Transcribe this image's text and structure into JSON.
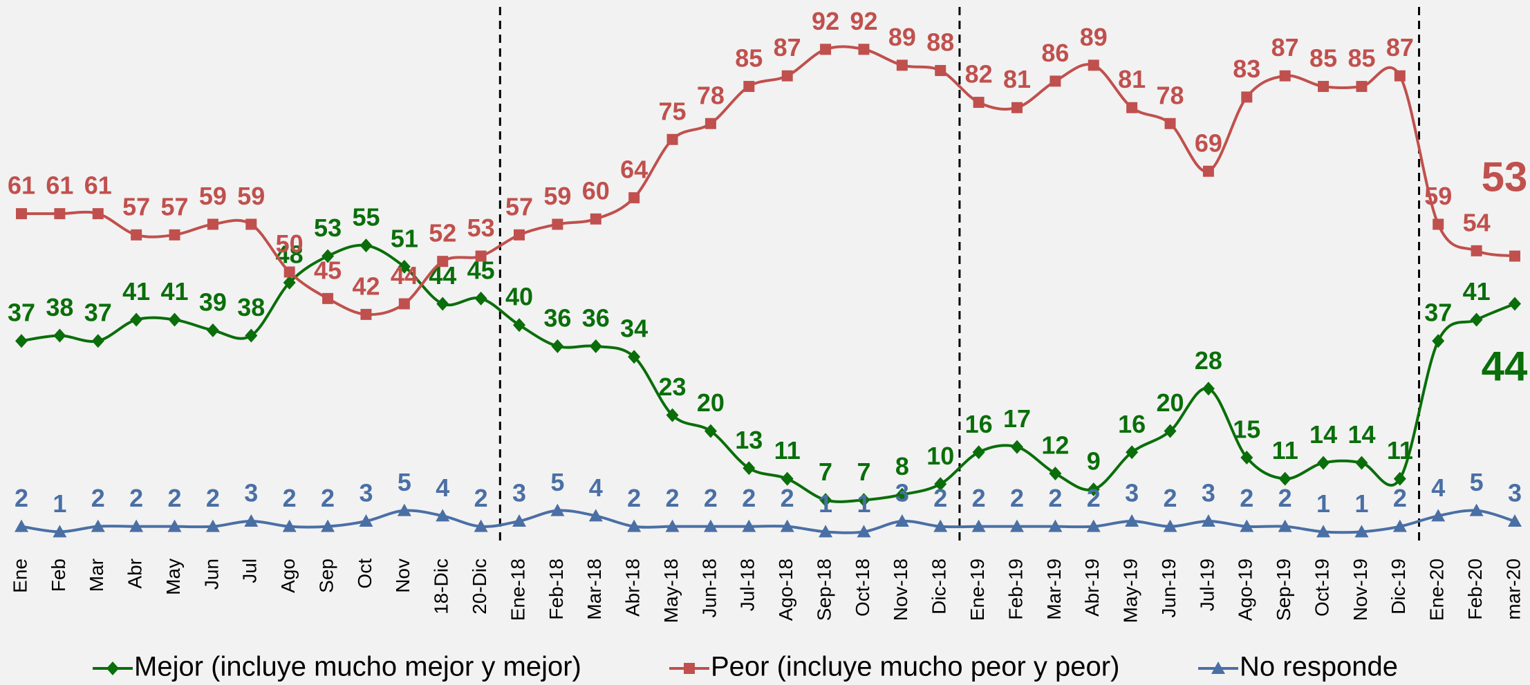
{
  "chart_data": {
    "type": "line",
    "categories": [
      "Ene",
      "Feb",
      "Mar",
      "Abr",
      "May",
      "Jun",
      "Jul",
      "Ago",
      "Sep",
      "Oct",
      "Nov",
      "18-Dic",
      "20-Dic",
      "Ene-18",
      "Feb-18",
      "Mar-18",
      "Abr-18",
      "May-18",
      "Jun-18",
      "Jul-18",
      "Ago-18",
      "Sep-18",
      "Oct-18",
      "Nov-18",
      "Dic-18",
      "Ene-19",
      "Feb-19",
      "Mar-19",
      "Abr-19",
      "May-19",
      "Jun-19",
      "Jul-19",
      "Ago-19",
      "Sep-19",
      "Oct-19",
      "Nov-19",
      "Dic-19",
      "Ene-20",
      "Feb-20",
      "mar-20"
    ],
    "ylim": [
      0,
      100
    ],
    "series": [
      {
        "name": "Mejor (incluye mucho mejor y mejor)",
        "color": "#0a6e0a",
        "marker": "diamond",
        "values": [
          37,
          38,
          37,
          41,
          41,
          39,
          38,
          48,
          53,
          55,
          51,
          44,
          45,
          40,
          36,
          36,
          34,
          23,
          20,
          13,
          11,
          7,
          7,
          8,
          10,
          16,
          17,
          12,
          9,
          16,
          20,
          28,
          15,
          11,
          14,
          14,
          11,
          37,
          41,
          44
        ]
      },
      {
        "name": "Peor (incluye mucho peor y peor)",
        "color": "#c0504d",
        "marker": "square",
        "values": [
          61,
          61,
          61,
          57,
          57,
          59,
          59,
          50,
          45,
          42,
          44,
          52,
          53,
          57,
          59,
          60,
          64,
          75,
          78,
          85,
          87,
          92,
          92,
          89,
          88,
          82,
          81,
          86,
          89,
          81,
          78,
          69,
          83,
          87,
          85,
          85,
          87,
          59,
          54,
          53
        ]
      },
      {
        "name": "No responde",
        "color": "#4a6fa5",
        "marker": "triangle",
        "values": [
          2,
          1,
          2,
          2,
          2,
          2,
          3,
          2,
          2,
          3,
          5,
          4,
          2,
          3,
          5,
          4,
          2,
          2,
          2,
          2,
          2,
          1,
          1,
          3,
          2,
          2,
          2,
          2,
          2,
          3,
          2,
          3,
          2,
          2,
          1,
          1,
          2,
          4,
          5,
          3
        ]
      }
    ]
  }
}
